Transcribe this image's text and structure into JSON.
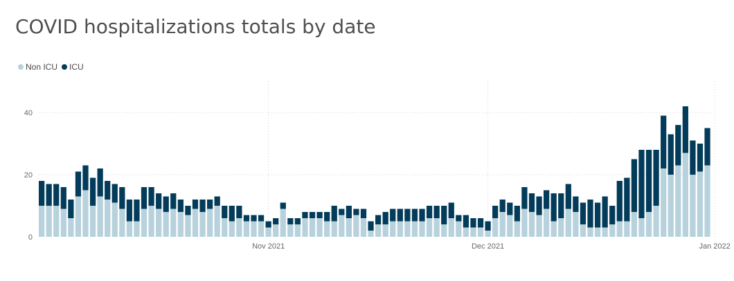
{
  "title": "COVID hospitalizations totals by date",
  "legend": [
    {
      "label": "Non ICU",
      "color": "#b7d2dc"
    },
    {
      "label": "ICU",
      "color": "#033c5a"
    }
  ],
  "chart_data": {
    "type": "bar",
    "stacked": true,
    "title": "COVID hospitalizations totals by date",
    "xlabel": "",
    "ylabel": "",
    "ylim": [
      0,
      50
    ],
    "y_ticks": [
      0,
      20,
      40
    ],
    "x_ticks": [
      {
        "label": "Nov 2021",
        "index": 31
      },
      {
        "label": "Dec 2021",
        "index": 61
      },
      {
        "label": "Jan 2022",
        "index": 92
      }
    ],
    "x_start": "2021-10-01",
    "x_end": "2022-01-03",
    "grid": "vertical dotted at month starts and horizontal dotted at y ticks",
    "legend_position": "top-left",
    "series": [
      {
        "name": "Non ICU",
        "color": "#b7d2dc",
        "values": [
          10,
          10,
          10,
          9,
          6,
          13,
          15,
          10,
          13,
          12,
          11,
          9,
          5,
          5,
          9,
          10,
          9,
          8,
          9,
          8,
          7,
          9,
          8,
          9,
          10,
          6,
          5,
          6,
          5,
          5,
          5,
          3,
          4,
          9,
          4,
          4,
          6,
          6,
          6,
          5,
          5,
          7,
          6,
          7,
          6,
          2,
          4,
          4,
          5,
          5,
          5,
          5,
          5,
          6,
          6,
          4,
          6,
          5,
          3,
          3,
          3,
          2,
          6,
          8,
          7,
          5,
          9,
          8,
          7,
          9,
          5,
          6,
          9,
          8,
          4,
          3,
          3,
          3,
          4,
          5,
          5,
          8,
          6,
          8,
          10,
          22,
          20,
          23,
          27,
          20,
          21,
          23
        ]
      },
      {
        "name": "ICU",
        "color": "#033c5a",
        "values": [
          8,
          7,
          7,
          7,
          6,
          8,
          8,
          9,
          9,
          6,
          6,
          7,
          7,
          7,
          7,
          6,
          5,
          5,
          5,
          4,
          3,
          3,
          4,
          3,
          3,
          4,
          5,
          4,
          2,
          2,
          2,
          2,
          2,
          2,
          2,
          2,
          2,
          2,
          2,
          3,
          5,
          2,
          4,
          2,
          3,
          3,
          3,
          4,
          4,
          4,
          4,
          4,
          4,
          4,
          4,
          6,
          5,
          2,
          4,
          3,
          3,
          3,
          4,
          4,
          4,
          5,
          7,
          6,
          6,
          6,
          9,
          8,
          8,
          5,
          7,
          9,
          8,
          10,
          6,
          13,
          14,
          17,
          22,
          20,
          18,
          17,
          13,
          13,
          15,
          11,
          9,
          12
        ]
      }
    ]
  }
}
